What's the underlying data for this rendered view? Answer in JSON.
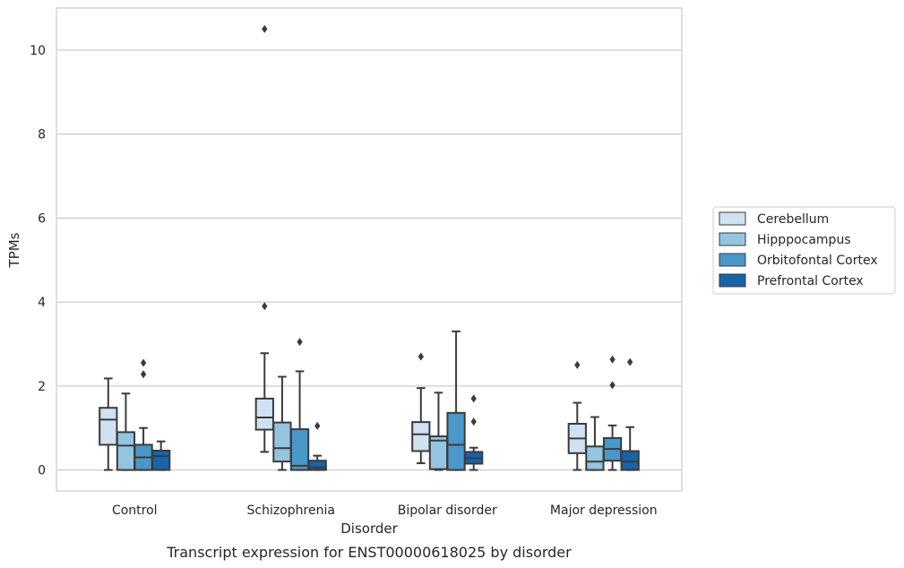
{
  "chart_data": {
    "type": "box",
    "caption": "Transcript expression for ENST00000618025 by disorder",
    "xlabel": "Disorder",
    "ylabel": "TPMs",
    "ylim": [
      -0.5,
      11
    ],
    "yticks": [
      0,
      2,
      4,
      6,
      8,
      10
    ],
    "grid": "horizontal",
    "legend_position": "right",
    "categories": [
      "Control",
      "Schizophrenia",
      "Bipolar disorder",
      "Major depression"
    ],
    "series": [
      {
        "name": "Cerebellum",
        "color": "#d0e1f2",
        "boxes": [
          {
            "whislo": 0.0,
            "q1": 0.6,
            "med": 1.2,
            "q3": 1.48,
            "whishi": 2.18,
            "fliers": []
          },
          {
            "whislo": 0.43,
            "q1": 0.96,
            "med": 1.25,
            "q3": 1.7,
            "whishi": 2.78,
            "fliers": [
              3.9,
              10.5
            ]
          },
          {
            "whislo": 0.16,
            "q1": 0.45,
            "med": 0.85,
            "q3": 1.14,
            "whishi": 1.95,
            "fliers": [
              2.7
            ]
          },
          {
            "whislo": 0.0,
            "q1": 0.4,
            "med": 0.75,
            "q3": 1.1,
            "whishi": 1.6,
            "fliers": [
              2.5
            ]
          }
        ]
      },
      {
        "name": "Hipppocampus",
        "color": "#94c4df",
        "boxes": [
          {
            "whislo": 0.0,
            "q1": 0.0,
            "med": 0.58,
            "q3": 0.9,
            "whishi": 1.82,
            "fliers": []
          },
          {
            "whislo": 0.0,
            "q1": 0.2,
            "med": 0.52,
            "q3": 1.13,
            "whishi": 2.22,
            "fliers": []
          },
          {
            "whislo": 0.0,
            "q1": 0.02,
            "med": 0.7,
            "q3": 0.8,
            "whishi": 1.84,
            "fliers": []
          },
          {
            "whislo": 0.0,
            "q1": 0.0,
            "med": 0.2,
            "q3": 0.56,
            "whishi": 1.26,
            "fliers": []
          }
        ]
      },
      {
        "name": "Orbitofontal Cortex",
        "color": "#4a98c9",
        "boxes": [
          {
            "whislo": 0.0,
            "q1": 0.0,
            "med": 0.3,
            "q3": 0.6,
            "whishi": 1.0,
            "fliers": [
              2.28,
              2.55
            ]
          },
          {
            "whislo": 0.0,
            "q1": 0.0,
            "med": 0.1,
            "q3": 0.97,
            "whishi": 2.35,
            "fliers": [
              3.05
            ]
          },
          {
            "whislo": 0.0,
            "q1": 0.0,
            "med": 0.6,
            "q3": 1.36,
            "whishi": 3.3,
            "fliers": []
          },
          {
            "whislo": 0.0,
            "q1": 0.22,
            "med": 0.5,
            "q3": 0.76,
            "whishi": 1.06,
            "fliers": [
              2.02,
              2.63
            ]
          }
        ]
      },
      {
        "name": "Prefrontal Cortex",
        "color": "#1764ab",
        "boxes": [
          {
            "whislo": 0.0,
            "q1": 0.0,
            "med": 0.33,
            "q3": 0.46,
            "whishi": 0.68,
            "fliers": []
          },
          {
            "whislo": 0.0,
            "q1": 0.0,
            "med": 0.06,
            "q3": 0.22,
            "whishi": 0.34,
            "fliers": [
              1.05
            ]
          },
          {
            "whislo": 0.0,
            "q1": 0.15,
            "med": 0.28,
            "q3": 0.43,
            "whishi": 0.53,
            "fliers": [
              1.15,
              1.7
            ]
          },
          {
            "whislo": 0.0,
            "q1": 0.0,
            "med": 0.2,
            "q3": 0.45,
            "whishi": 1.02,
            "fliers": [
              2.57
            ]
          }
        ]
      }
    ]
  }
}
